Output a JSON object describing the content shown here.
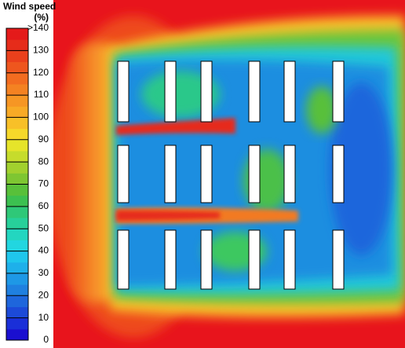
{
  "chart_data": {
    "type": "contour",
    "colorbar_title": "Wind speed",
    "colorbar_unit": "(%)",
    "clim": [
      0,
      140
    ],
    "cticks": [
      {
        "value": 140,
        "label": ">140"
      },
      130,
      120,
      110,
      100,
      90,
      80,
      70,
      60,
      50,
      40,
      30,
      20,
      10,
      0
    ],
    "colors": [
      "#1a0fd0",
      "#1a2fd8",
      "#1c4ad8",
      "#1e66dc",
      "#1f80e0",
      "#1e98e6",
      "#1eb0ea",
      "#1fc6ec",
      "#22d6e0",
      "#23d6c0",
      "#27d09a",
      "#2fc878",
      "#3cc050",
      "#58c03a",
      "#7ec632",
      "#a2d02e",
      "#c6dc2c",
      "#e6e42a",
      "#f6d82a",
      "#f8c028",
      "#f8aa26",
      "#f69624",
      "#f48222",
      "#f26c20",
      "#ee561e",
      "#ea401c",
      "#e62c1a",
      "#e41a1a"
    ]
  }
}
